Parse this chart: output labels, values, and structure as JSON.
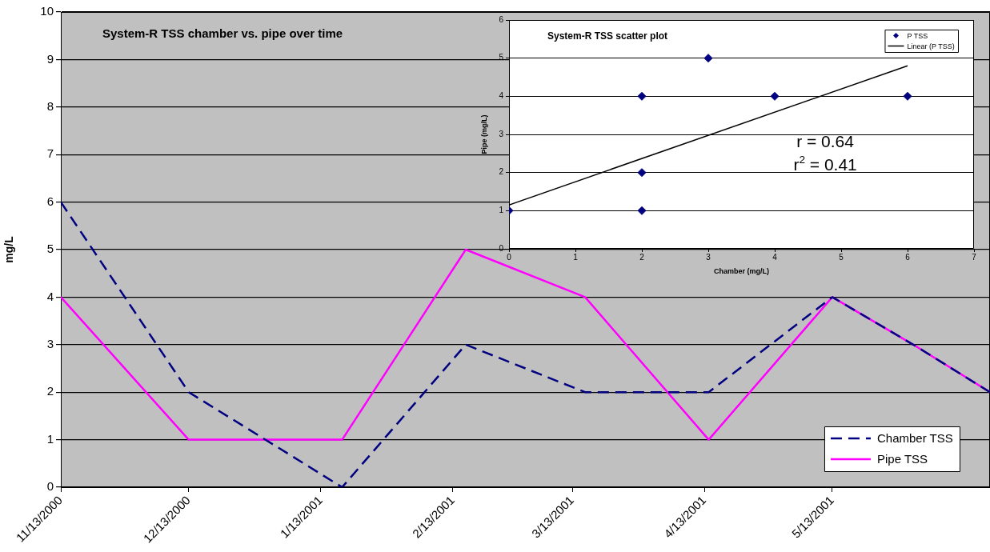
{
  "chart_data": [
    {
      "type": "line",
      "title": "System-R TSS chamber vs. pipe over time",
      "ylabel": "mg/L",
      "x": [
        "2000-11-13",
        "2000-12-13",
        "2001-01-18",
        "2001-02-16",
        "2001-03-16",
        "2001-04-14",
        "2001-05-13",
        "2001-06-01",
        "2001-06-19"
      ],
      "series": [
        {
          "name": "Chamber TSS",
          "color": "#000080",
          "line_style": "dashed",
          "values": [
            6,
            2,
            0,
            3,
            2,
            2,
            4,
            3,
            2
          ]
        },
        {
          "name": "Pipe TSS",
          "color": "#ff00ff",
          "line_style": "solid",
          "values": [
            4,
            1,
            1,
            5,
            4,
            1,
            4,
            3,
            2
          ]
        }
      ],
      "xlim": [
        "2000-11-13",
        "2001-06-19"
      ],
      "xticks": [
        {
          "value": "2000-11-13",
          "label": "11/13/2000"
        },
        {
          "value": "2000-12-13",
          "label": "12/13/2000"
        },
        {
          "value": "2001-01-13",
          "label": "1/13/2001"
        },
        {
          "value": "2001-02-13",
          "label": "2/13/2001"
        },
        {
          "value": "2001-03-13",
          "label": "3/13/2001"
        },
        {
          "value": "2001-04-13",
          "label": "4/13/2001"
        },
        {
          "value": "2001-05-13",
          "label": "5/13/2001"
        }
      ],
      "ylim": [
        0,
        10
      ],
      "yticks": [
        0,
        1,
        2,
        3,
        4,
        5,
        6,
        7,
        8,
        9,
        10
      ],
      "grid": "y",
      "legend": "bottom right"
    },
    {
      "type": "scatter",
      "title": "System-R TSS scatter plot",
      "xlabel": "Chamber (mg/L)",
      "ylabel": "Pipe (mg/L)",
      "series": [
        {
          "name": "P TSS",
          "color": "#000080",
          "marker": "diamond",
          "x": [
            0,
            2,
            2,
            2,
            3,
            4,
            6
          ],
          "values": [
            1,
            1,
            2,
            4,
            5,
            4,
            4
          ]
        },
        {
          "name": "Linear (P TSS)",
          "type": "line",
          "color": "#000000",
          "x": [
            0,
            6
          ],
          "values": [
            1.15,
            4.8
          ]
        }
      ],
      "xlim": [
        0,
        7
      ],
      "xticks": [
        0,
        1,
        2,
        3,
        4,
        5,
        6,
        7
      ],
      "ylim": [
        0,
        6
      ],
      "yticks": [
        0,
        1,
        2,
        3,
        4,
        5,
        6
      ],
      "grid": "y",
      "legend": "top right",
      "annotations": [
        "r = 0.64",
        "r$^{2}$ = 0.41"
      ]
    }
  ]
}
